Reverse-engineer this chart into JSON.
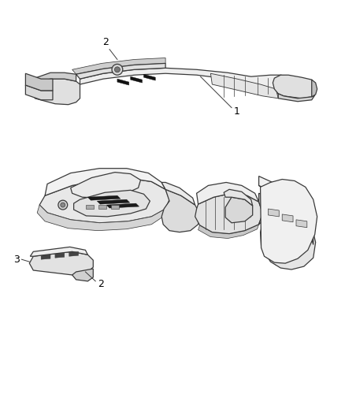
{
  "background_color": "#ffffff",
  "line_color": "#3a3a3a",
  "light_gray": "#e8e8e8",
  "mid_gray": "#d0d0d0",
  "dark_gray": "#b0b0b0",
  "slot_color": "#1a1a1a",
  "fig_width": 4.38,
  "fig_height": 5.33,
  "dpi": 100
}
